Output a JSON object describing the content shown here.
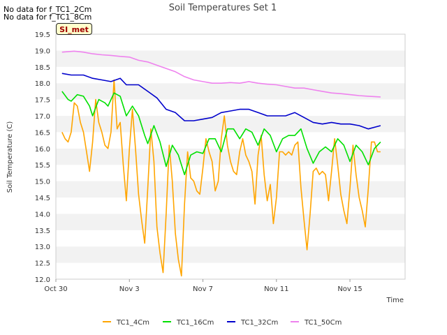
{
  "no_data_notes": [
    "No data for f_TC1_2Cm",
    "No data for f_TC1_8Cm"
  ],
  "site_label": "SI_met",
  "chart_data": {
    "type": "line",
    "title": "Soil Temperatures Set 1",
    "xlabel": "Time",
    "ylabel": "Soil Temperature (C)",
    "ylim": [
      12.0,
      19.5
    ],
    "yticks": [
      12.0,
      12.5,
      13.0,
      13.5,
      14.0,
      14.5,
      15.0,
      15.5,
      16.0,
      16.5,
      17.0,
      17.5,
      18.0,
      18.5,
      19.0,
      19.5
    ],
    "xlim": [
      "2023-10-30",
      "2023-11-18"
    ],
    "xticks": [
      "2023-10-30",
      "2023-11-03",
      "2023-11-07",
      "2023-11-11",
      "2023-11-15"
    ],
    "xtick_labels": [
      "Oct 30",
      "Nov 3",
      "Nov 7",
      "Nov 11",
      "Nov 15"
    ],
    "grid": "horizontal-bands",
    "legend_position": "bottom",
    "series": [
      {
        "name": "TC1_4Cm",
        "color": "#ffa500",
        "points": [
          [
            "2023-10-30 08:00",
            16.5
          ],
          [
            "2023-10-30 12:00",
            16.3
          ],
          [
            "2023-10-30 16:00",
            16.2
          ],
          [
            "2023-10-30 20:00",
            16.5
          ],
          [
            "2023-10-31 00:00",
            17.4
          ],
          [
            "2023-10-31 04:00",
            17.3
          ],
          [
            "2023-10-31 08:00",
            16.8
          ],
          [
            "2023-10-31 12:00",
            16.5
          ],
          [
            "2023-10-31 16:00",
            15.9
          ],
          [
            "2023-10-31 20:00",
            15.3
          ],
          [
            "2023-11-01 00:00",
            16.2
          ],
          [
            "2023-11-01 04:00",
            17.5
          ],
          [
            "2023-11-01 08:00",
            16.8
          ],
          [
            "2023-11-01 12:00",
            16.5
          ],
          [
            "2023-11-01 16:00",
            16.1
          ],
          [
            "2023-11-01 20:00",
            16.0
          ],
          [
            "2023-11-02 00:00",
            16.5
          ],
          [
            "2023-11-02 04:00",
            18.1
          ],
          [
            "2023-11-02 08:00",
            16.6
          ],
          [
            "2023-11-02 12:00",
            16.8
          ],
          [
            "2023-11-02 16:00",
            15.5
          ],
          [
            "2023-11-02 20:00",
            14.4
          ],
          [
            "2023-11-03 00:00",
            16.0
          ],
          [
            "2023-11-03 04:00",
            17.2
          ],
          [
            "2023-11-03 08:00",
            16.0
          ],
          [
            "2023-11-03 12:00",
            14.6
          ],
          [
            "2023-11-03 16:00",
            13.8
          ],
          [
            "2023-11-03 20:00",
            13.1
          ],
          [
            "2023-11-04 00:00",
            14.8
          ],
          [
            "2023-11-04 04:00",
            16.6
          ],
          [
            "2023-11-04 08:00",
            15.6
          ],
          [
            "2023-11-04 12:00",
            13.6
          ],
          [
            "2023-11-04 16:00",
            12.8
          ],
          [
            "2023-11-04 20:00",
            12.2
          ],
          [
            "2023-11-05 00:00",
            14.0
          ],
          [
            "2023-11-05 04:00",
            16.1
          ],
          [
            "2023-11-05 08:00",
            15.0
          ],
          [
            "2023-11-05 12:00",
            13.4
          ],
          [
            "2023-11-05 16:00",
            12.6
          ],
          [
            "2023-11-05 20:00",
            12.1
          ],
          [
            "2023-11-06 00:00",
            14.3
          ],
          [
            "2023-11-06 04:00",
            15.9
          ],
          [
            "2023-11-06 08:00",
            15.1
          ],
          [
            "2023-11-06 12:00",
            15.0
          ],
          [
            "2023-11-06 16:00",
            14.7
          ],
          [
            "2023-11-06 20:00",
            14.6
          ],
          [
            "2023-11-07 00:00",
            15.4
          ],
          [
            "2023-11-07 04:00",
            16.3
          ],
          [
            "2023-11-07 08:00",
            15.9
          ],
          [
            "2023-11-07 12:00",
            15.6
          ],
          [
            "2023-11-07 16:00",
            14.7
          ],
          [
            "2023-11-07 20:00",
            15.0
          ],
          [
            "2023-11-08 00:00",
            16.3
          ],
          [
            "2023-11-08 04:00",
            17.0
          ],
          [
            "2023-11-08 08:00",
            16.1
          ],
          [
            "2023-11-08 12:00",
            15.6
          ],
          [
            "2023-11-08 16:00",
            15.3
          ],
          [
            "2023-11-08 20:00",
            15.2
          ],
          [
            "2023-11-09 00:00",
            15.9
          ],
          [
            "2023-11-09 04:00",
            16.3
          ],
          [
            "2023-11-09 08:00",
            15.8
          ],
          [
            "2023-11-09 12:00",
            15.6
          ],
          [
            "2023-11-09 16:00",
            15.3
          ],
          [
            "2023-11-09 20:00",
            14.3
          ],
          [
            "2023-11-10 00:00",
            15.8
          ],
          [
            "2023-11-10 04:00",
            16.4
          ],
          [
            "2023-11-10 08:00",
            15.2
          ],
          [
            "2023-11-10 12:00",
            14.4
          ],
          [
            "2023-11-10 16:00",
            14.9
          ],
          [
            "2023-11-10 20:00",
            13.7
          ],
          [
            "2023-11-11 00:00",
            14.5
          ],
          [
            "2023-11-11 04:00",
            15.9
          ],
          [
            "2023-11-11 08:00",
            15.9
          ],
          [
            "2023-11-11 12:00",
            15.8
          ],
          [
            "2023-11-11 16:00",
            15.9
          ],
          [
            "2023-11-11 20:00",
            15.8
          ],
          [
            "2023-11-12 00:00",
            16.1
          ],
          [
            "2023-11-12 04:00",
            16.2
          ],
          [
            "2023-11-12 08:00",
            14.8
          ],
          [
            "2023-11-12 12:00",
            13.8
          ],
          [
            "2023-11-12 16:00",
            12.9
          ],
          [
            "2023-11-12 20:00",
            14.0
          ],
          [
            "2023-11-13 00:00",
            15.3
          ],
          [
            "2023-11-13 04:00",
            15.4
          ],
          [
            "2023-11-13 08:00",
            15.2
          ],
          [
            "2023-11-13 12:00",
            15.3
          ],
          [
            "2023-11-13 16:00",
            15.2
          ],
          [
            "2023-11-13 20:00",
            14.4
          ],
          [
            "2023-11-14 00:00",
            15.3
          ],
          [
            "2023-11-14 04:00",
            16.3
          ],
          [
            "2023-11-14 08:00",
            15.5
          ],
          [
            "2023-11-14 12:00",
            14.6
          ],
          [
            "2023-11-14 16:00",
            14.1
          ],
          [
            "2023-11-14 20:00",
            13.7
          ],
          [
            "2023-11-15 00:00",
            14.8
          ],
          [
            "2023-11-15 04:00",
            16.1
          ],
          [
            "2023-11-15 08:00",
            15.2
          ],
          [
            "2023-11-15 12:00",
            14.5
          ],
          [
            "2023-11-15 16:00",
            14.1
          ],
          [
            "2023-11-15 20:00",
            13.6
          ],
          [
            "2023-11-16 00:00",
            14.8
          ],
          [
            "2023-11-16 04:00",
            16.2
          ],
          [
            "2023-11-16 08:00",
            16.2
          ],
          [
            "2023-11-16 12:00",
            15.9
          ],
          [
            "2023-11-16 16:00",
            15.9
          ]
        ]
      },
      {
        "name": "TC1_16Cm",
        "color": "#00e000",
        "points": [
          [
            "2023-10-30 08:00",
            17.75
          ],
          [
            "2023-10-30 16:00",
            17.5
          ],
          [
            "2023-10-30 20:00",
            17.45
          ],
          [
            "2023-10-31 04:00",
            17.65
          ],
          [
            "2023-10-31 12:00",
            17.6
          ],
          [
            "2023-10-31 20:00",
            17.3
          ],
          [
            "2023-11-01 00:00",
            17.0
          ],
          [
            "2023-11-01 08:00",
            17.5
          ],
          [
            "2023-11-01 16:00",
            17.4
          ],
          [
            "2023-11-01 20:00",
            17.3
          ],
          [
            "2023-11-02 04:00",
            17.7
          ],
          [
            "2023-11-02 12:00",
            17.6
          ],
          [
            "2023-11-02 20:00",
            17.0
          ],
          [
            "2023-11-03 04:00",
            17.3
          ],
          [
            "2023-11-03 12:00",
            17.0
          ],
          [
            "2023-11-03 20:00",
            16.4
          ],
          [
            "2023-11-04 00:00",
            16.15
          ],
          [
            "2023-11-04 08:00",
            16.7
          ],
          [
            "2023-11-04 16:00",
            16.2
          ],
          [
            "2023-11-05 00:00",
            15.45
          ],
          [
            "2023-11-05 08:00",
            16.1
          ],
          [
            "2023-11-05 16:00",
            15.8
          ],
          [
            "2023-11-06 00:00",
            15.2
          ],
          [
            "2023-11-06 08:00",
            15.8
          ],
          [
            "2023-11-06 16:00",
            15.9
          ],
          [
            "2023-11-07 00:00",
            15.85
          ],
          [
            "2023-11-07 08:00",
            16.3
          ],
          [
            "2023-11-07 16:00",
            16.3
          ],
          [
            "2023-11-08 00:00",
            15.9
          ],
          [
            "2023-11-08 08:00",
            16.6
          ],
          [
            "2023-11-08 16:00",
            16.6
          ],
          [
            "2023-11-09 00:00",
            16.3
          ],
          [
            "2023-11-09 08:00",
            16.6
          ],
          [
            "2023-11-09 16:00",
            16.5
          ],
          [
            "2023-11-10 00:00",
            16.1
          ],
          [
            "2023-11-10 08:00",
            16.6
          ],
          [
            "2023-11-10 16:00",
            16.4
          ],
          [
            "2023-11-11 00:00",
            15.9
          ],
          [
            "2023-11-11 08:00",
            16.3
          ],
          [
            "2023-11-11 16:00",
            16.4
          ],
          [
            "2023-11-12 00:00",
            16.4
          ],
          [
            "2023-11-12 08:00",
            16.6
          ],
          [
            "2023-11-12 16:00",
            16.0
          ],
          [
            "2023-11-13 00:00",
            15.55
          ],
          [
            "2023-11-13 08:00",
            15.9
          ],
          [
            "2023-11-13 16:00",
            16.05
          ],
          [
            "2023-11-14 00:00",
            15.9
          ],
          [
            "2023-11-14 08:00",
            16.3
          ],
          [
            "2023-11-14 16:00",
            16.1
          ],
          [
            "2023-11-15 00:00",
            15.6
          ],
          [
            "2023-11-15 08:00",
            16.1
          ],
          [
            "2023-11-15 16:00",
            15.9
          ],
          [
            "2023-11-16 00:00",
            15.5
          ],
          [
            "2023-11-16 08:00",
            16.0
          ],
          [
            "2023-11-16 16:00",
            16.2
          ]
        ]
      },
      {
        "name": "TC1_32Cm",
        "color": "#0000cc",
        "points": [
          [
            "2023-10-30 08:00",
            18.3
          ],
          [
            "2023-10-30 20:00",
            18.25
          ],
          [
            "2023-10-31 12:00",
            18.25
          ],
          [
            "2023-11-01 00:00",
            18.15
          ],
          [
            "2023-11-01 12:00",
            18.1
          ],
          [
            "2023-11-02 00:00",
            18.05
          ],
          [
            "2023-11-02 12:00",
            18.15
          ],
          [
            "2023-11-02 20:00",
            17.95
          ],
          [
            "2023-11-03 12:00",
            17.95
          ],
          [
            "2023-11-04 00:00",
            17.75
          ],
          [
            "2023-11-04 12:00",
            17.55
          ],
          [
            "2023-11-05 00:00",
            17.2
          ],
          [
            "2023-11-05 12:00",
            17.1
          ],
          [
            "2023-11-06 00:00",
            16.85
          ],
          [
            "2023-11-06 12:00",
            16.85
          ],
          [
            "2023-11-07 00:00",
            16.9
          ],
          [
            "2023-11-07 12:00",
            16.95
          ],
          [
            "2023-11-08 00:00",
            17.1
          ],
          [
            "2023-11-08 12:00",
            17.15
          ],
          [
            "2023-11-09 00:00",
            17.2
          ],
          [
            "2023-11-09 12:00",
            17.2
          ],
          [
            "2023-11-10 00:00",
            17.1
          ],
          [
            "2023-11-10 12:00",
            17.0
          ],
          [
            "2023-11-11 00:00",
            17.0
          ],
          [
            "2023-11-11 12:00",
            17.0
          ],
          [
            "2023-11-12 00:00",
            17.1
          ],
          [
            "2023-11-12 12:00",
            16.95
          ],
          [
            "2023-11-13 00:00",
            16.8
          ],
          [
            "2023-11-13 12:00",
            16.75
          ],
          [
            "2023-11-14 00:00",
            16.8
          ],
          [
            "2023-11-14 12:00",
            16.75
          ],
          [
            "2023-11-15 00:00",
            16.75
          ],
          [
            "2023-11-15 12:00",
            16.7
          ],
          [
            "2023-11-16 00:00",
            16.6
          ],
          [
            "2023-11-16 16:00",
            16.7
          ]
        ]
      },
      {
        "name": "TC1_50Cm",
        "color": "#ee82ee",
        "points": [
          [
            "2023-10-30 08:00",
            18.95
          ],
          [
            "2023-10-31 00:00",
            18.98
          ],
          [
            "2023-10-31 12:00",
            18.95
          ],
          [
            "2023-11-01 00:00",
            18.9
          ],
          [
            "2023-11-01 12:00",
            18.87
          ],
          [
            "2023-11-02 00:00",
            18.85
          ],
          [
            "2023-11-02 12:00",
            18.82
          ],
          [
            "2023-11-03 00:00",
            18.8
          ],
          [
            "2023-11-03 12:00",
            18.7
          ],
          [
            "2023-11-04 00:00",
            18.65
          ],
          [
            "2023-11-04 12:00",
            18.55
          ],
          [
            "2023-11-05 00:00",
            18.45
          ],
          [
            "2023-11-05 12:00",
            18.35
          ],
          [
            "2023-11-06 00:00",
            18.2
          ],
          [
            "2023-11-06 12:00",
            18.1
          ],
          [
            "2023-11-07 00:00",
            18.05
          ],
          [
            "2023-11-07 12:00",
            18.0
          ],
          [
            "2023-11-08 00:00",
            18.0
          ],
          [
            "2023-11-08 12:00",
            18.02
          ],
          [
            "2023-11-09 00:00",
            18.0
          ],
          [
            "2023-11-09 12:00",
            18.05
          ],
          [
            "2023-11-10 00:00",
            18.0
          ],
          [
            "2023-11-10 12:00",
            17.97
          ],
          [
            "2023-11-11 00:00",
            17.95
          ],
          [
            "2023-11-11 12:00",
            17.9
          ],
          [
            "2023-11-12 00:00",
            17.85
          ],
          [
            "2023-11-12 12:00",
            17.85
          ],
          [
            "2023-11-13 00:00",
            17.8
          ],
          [
            "2023-11-13 12:00",
            17.75
          ],
          [
            "2023-11-14 00:00",
            17.7
          ],
          [
            "2023-11-14 12:00",
            17.68
          ],
          [
            "2023-11-15 00:00",
            17.65
          ],
          [
            "2023-11-15 12:00",
            17.62
          ],
          [
            "2023-11-16 00:00",
            17.6
          ],
          [
            "2023-11-16 16:00",
            17.58
          ]
        ]
      }
    ]
  }
}
